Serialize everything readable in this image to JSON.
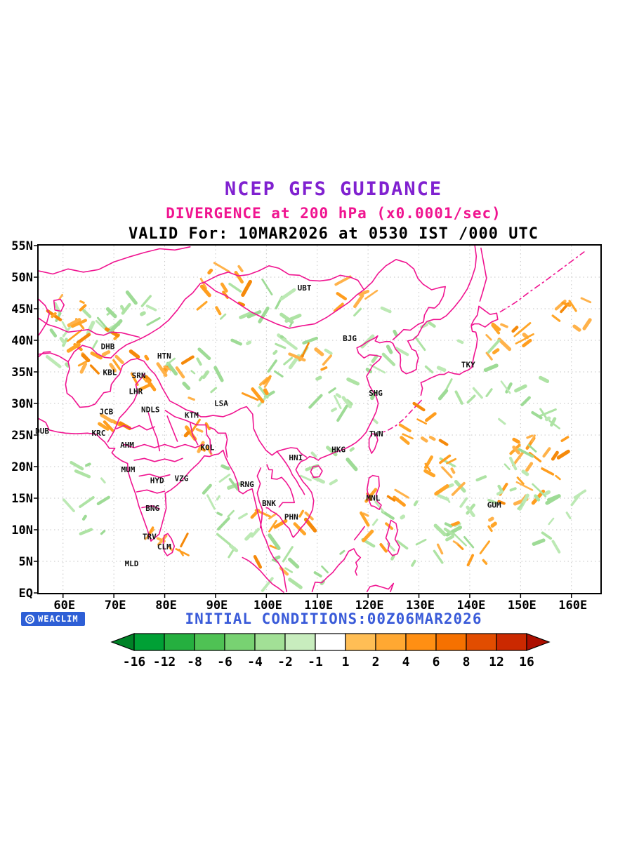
{
  "titles": {
    "line1": "NCEP GFS GUIDANCE",
    "line2": "DIVERGENCE at 200 hPa (x0.0001/sec)",
    "line3": "VALID For: 10MAR2026 at 0530 IST /000 UTC"
  },
  "footer": {
    "initial_conditions": "INITIAL CONDITIONS:00Z06MAR2026",
    "logo": "WEACLIM"
  },
  "colors": {
    "title1": "#8021D0",
    "title2": "#F01490",
    "coast": "#F01490",
    "footer": "#3A5BD9",
    "badge_bg": "#2E5FD6",
    "grid": "#C6C6C6",
    "neg_palette": [
      "#AEE3A4",
      "#BCE9B4",
      "#9EDB96"
    ],
    "pos_palette": [
      "#FFA629",
      "#FF9D1E",
      "#FFB24A",
      "#F5890A"
    ]
  },
  "map": {
    "x_ticks": [
      "60E",
      "70E",
      "80E",
      "90E",
      "100E",
      "110E",
      "120E",
      "130E",
      "140E",
      "150E",
      "160E"
    ],
    "y_ticks": [
      "EQ",
      "5N",
      "10N",
      "15N",
      "20N",
      "25N",
      "30N",
      "35N",
      "40N",
      "45N",
      "50N",
      "55N"
    ],
    "stations": [
      {
        "label": "UBT",
        "lon": 107.5,
        "lat": 47.9
      },
      {
        "label": "BJG",
        "lon": 116.4,
        "lat": 39.9
      },
      {
        "label": "TKY",
        "lon": 139.7,
        "lat": 35.7
      },
      {
        "label": "DHB",
        "lon": 68.8,
        "lat": 38.6
      },
      {
        "label": "HTN",
        "lon": 79.9,
        "lat": 37.1
      },
      {
        "label": "KBL",
        "lon": 69.2,
        "lat": 34.5
      },
      {
        "label": "SRN",
        "lon": 74.9,
        "lat": 34.0
      },
      {
        "label": "LHR",
        "lon": 74.3,
        "lat": 31.5
      },
      {
        "label": "JCB",
        "lon": 68.5,
        "lat": 28.3
      },
      {
        "label": "NDLS",
        "lon": 77.2,
        "lat": 28.6
      },
      {
        "label": "KTM",
        "lon": 85.3,
        "lat": 27.7
      },
      {
        "label": "LSA",
        "lon": 91.1,
        "lat": 29.6
      },
      {
        "label": "SHG",
        "lon": 121.5,
        "lat": 31.2
      },
      {
        "label": "TWN",
        "lon": 121.6,
        "lat": 24.8
      },
      {
        "label": "KRC",
        "lon": 67.0,
        "lat": 24.9
      },
      {
        "label": "AHM",
        "lon": 72.6,
        "lat": 23.0
      },
      {
        "label": "KOL",
        "lon": 88.4,
        "lat": 22.6
      },
      {
        "label": "HKG",
        "lon": 114.2,
        "lat": 22.3
      },
      {
        "label": "HNI",
        "lon": 105.8,
        "lat": 21.0
      },
      {
        "label": "MUM",
        "lon": 72.8,
        "lat": 19.1
      },
      {
        "label": "HYD",
        "lon": 78.5,
        "lat": 17.4
      },
      {
        "label": "VZG",
        "lon": 83.3,
        "lat": 17.7
      },
      {
        "label": "RNG",
        "lon": 96.2,
        "lat": 16.8
      },
      {
        "label": "BNK",
        "lon": 100.5,
        "lat": 13.8
      },
      {
        "label": "MNL",
        "lon": 121.0,
        "lat": 14.6
      },
      {
        "label": "GUM",
        "lon": 144.8,
        "lat": 13.5
      },
      {
        "label": "BNG",
        "lon": 77.6,
        "lat": 13.0
      },
      {
        "label": "PHN",
        "lon": 104.9,
        "lat": 11.6
      },
      {
        "label": "TRV",
        "lon": 77.0,
        "lat": 8.5
      },
      {
        "label": "CLM",
        "lon": 79.9,
        "lat": 6.9
      },
      {
        "label": "MLD",
        "lon": 73.5,
        "lat": 4.2
      },
      {
        "label": "DUB",
        "lon": 55.9,
        "lat": 25.2
      }
    ]
  },
  "colorbar": {
    "labels": [
      "-16",
      "-12",
      "-8",
      "-6",
      "-4",
      "-2",
      "-1",
      "1",
      "2",
      "4",
      "6",
      "8",
      "12",
      "16"
    ],
    "segment_colors": [
      "#00A035",
      "#25AF3F",
      "#4FC254",
      "#78D272",
      "#A2E096",
      "#C8EDBE",
      "#FFFFFF",
      "#FFBE55",
      "#FFA832",
      "#FF8F13",
      "#F67100",
      "#E24D00",
      "#CB2900"
    ],
    "arrow_left": "#008227",
    "arrow_right": "#AC0E00"
  },
  "shading_clusters": [
    {
      "lon": 64,
      "lat": 41,
      "sx": 6,
      "sy": 5,
      "n": 18,
      "type": "neg"
    },
    {
      "lon": 67,
      "lat": 37,
      "sx": 6,
      "sy": 5,
      "n": 16,
      "type": "pos"
    },
    {
      "lon": 60,
      "lat": 44,
      "sx": 4,
      "sy": 3,
      "n": 8,
      "type": "pos"
    },
    {
      "lon": 75,
      "lat": 45,
      "sx": 5,
      "sy": 3,
      "n": 8,
      "type": "neg"
    },
    {
      "lon": 80,
      "lat": 34,
      "sx": 6,
      "sy": 4,
      "n": 14,
      "type": "pos"
    },
    {
      "lon": 86,
      "lat": 36,
      "sx": 5,
      "sy": 4,
      "n": 10,
      "type": "neg"
    },
    {
      "lon": 92,
      "lat": 48,
      "sx": 5,
      "sy": 4,
      "n": 12,
      "type": "pos"
    },
    {
      "lon": 98,
      "lat": 44,
      "sx": 8,
      "sy": 5,
      "n": 16,
      "type": "neg"
    },
    {
      "lon": 106,
      "lat": 35,
      "sx": 8,
      "sy": 5,
      "n": 14,
      "type": "neg"
    },
    {
      "lon": 109,
      "lat": 37,
      "sx": 3,
      "sy": 2,
      "n": 6,
      "type": "pos"
    },
    {
      "lon": 98,
      "lat": 31,
      "sx": 4,
      "sy": 3,
      "n": 6,
      "type": "pos"
    },
    {
      "lon": 87,
      "lat": 25,
      "sx": 4,
      "sy": 3,
      "n": 8,
      "type": "pos"
    },
    {
      "lon": 116,
      "lat": 30,
      "sx": 6,
      "sy": 4,
      "n": 10,
      "type": "neg"
    },
    {
      "lon": 125,
      "lat": 40,
      "sx": 8,
      "sy": 5,
      "n": 12,
      "type": "neg"
    },
    {
      "lon": 148,
      "lat": 40,
      "sx": 6,
      "sy": 4,
      "n": 14,
      "type": "pos"
    },
    {
      "lon": 138,
      "lat": 35,
      "sx": 8,
      "sy": 5,
      "n": 12,
      "type": "neg"
    },
    {
      "lon": 152,
      "lat": 30,
      "sx": 6,
      "sy": 5,
      "n": 12,
      "type": "neg"
    },
    {
      "lon": 130,
      "lat": 27,
      "sx": 4,
      "sy": 3,
      "n": 8,
      "type": "pos"
    },
    {
      "lon": 152,
      "lat": 20,
      "sx": 7,
      "sy": 6,
      "n": 22,
      "type": "pos"
    },
    {
      "lon": 145,
      "lat": 15,
      "sx": 10,
      "sy": 8,
      "n": 26,
      "type": "neg"
    },
    {
      "lon": 140,
      "lat": 8,
      "sx": 6,
      "sy": 4,
      "n": 10,
      "type": "pos"
    },
    {
      "lon": 128,
      "lat": 10,
      "sx": 8,
      "sy": 6,
      "n": 16,
      "type": "neg"
    },
    {
      "lon": 122,
      "lat": 12,
      "sx": 5,
      "sy": 5,
      "n": 10,
      "type": "pos"
    },
    {
      "lon": 112,
      "lat": 20,
      "sx": 5,
      "sy": 4,
      "n": 8,
      "type": "neg"
    },
    {
      "lon": 103,
      "lat": 8,
      "sx": 6,
      "sy": 5,
      "n": 12,
      "type": "pos"
    },
    {
      "lon": 108,
      "lat": 5,
      "sx": 8,
      "sy": 4,
      "n": 12,
      "type": "neg"
    },
    {
      "lon": 95,
      "lat": 10,
      "sx": 6,
      "sy": 5,
      "n": 10,
      "type": "neg"
    },
    {
      "lon": 80,
      "lat": 9,
      "sx": 4,
      "sy": 3,
      "n": 8,
      "type": "pos"
    },
    {
      "lon": 62,
      "lat": 15,
      "sx": 6,
      "sy": 6,
      "n": 10,
      "type": "neg"
    },
    {
      "lon": 118,
      "lat": 47,
      "sx": 4,
      "sy": 3,
      "n": 6,
      "type": "pos"
    },
    {
      "lon": 160,
      "lat": 45,
      "sx": 4,
      "sy": 4,
      "n": 8,
      "type": "pos"
    },
    {
      "lon": 158,
      "lat": 12,
      "sx": 5,
      "sy": 5,
      "n": 10,
      "type": "neg"
    },
    {
      "lon": 70,
      "lat": 28,
      "sx": 3,
      "sy": 2,
      "n": 5,
      "type": "pos"
    },
    {
      "lon": 90,
      "lat": 18,
      "sx": 4,
      "sy": 3,
      "n": 6,
      "type": "neg"
    },
    {
      "lon": 133,
      "lat": 20,
      "sx": 5,
      "sy": 4,
      "n": 10,
      "type": "pos"
    }
  ]
}
